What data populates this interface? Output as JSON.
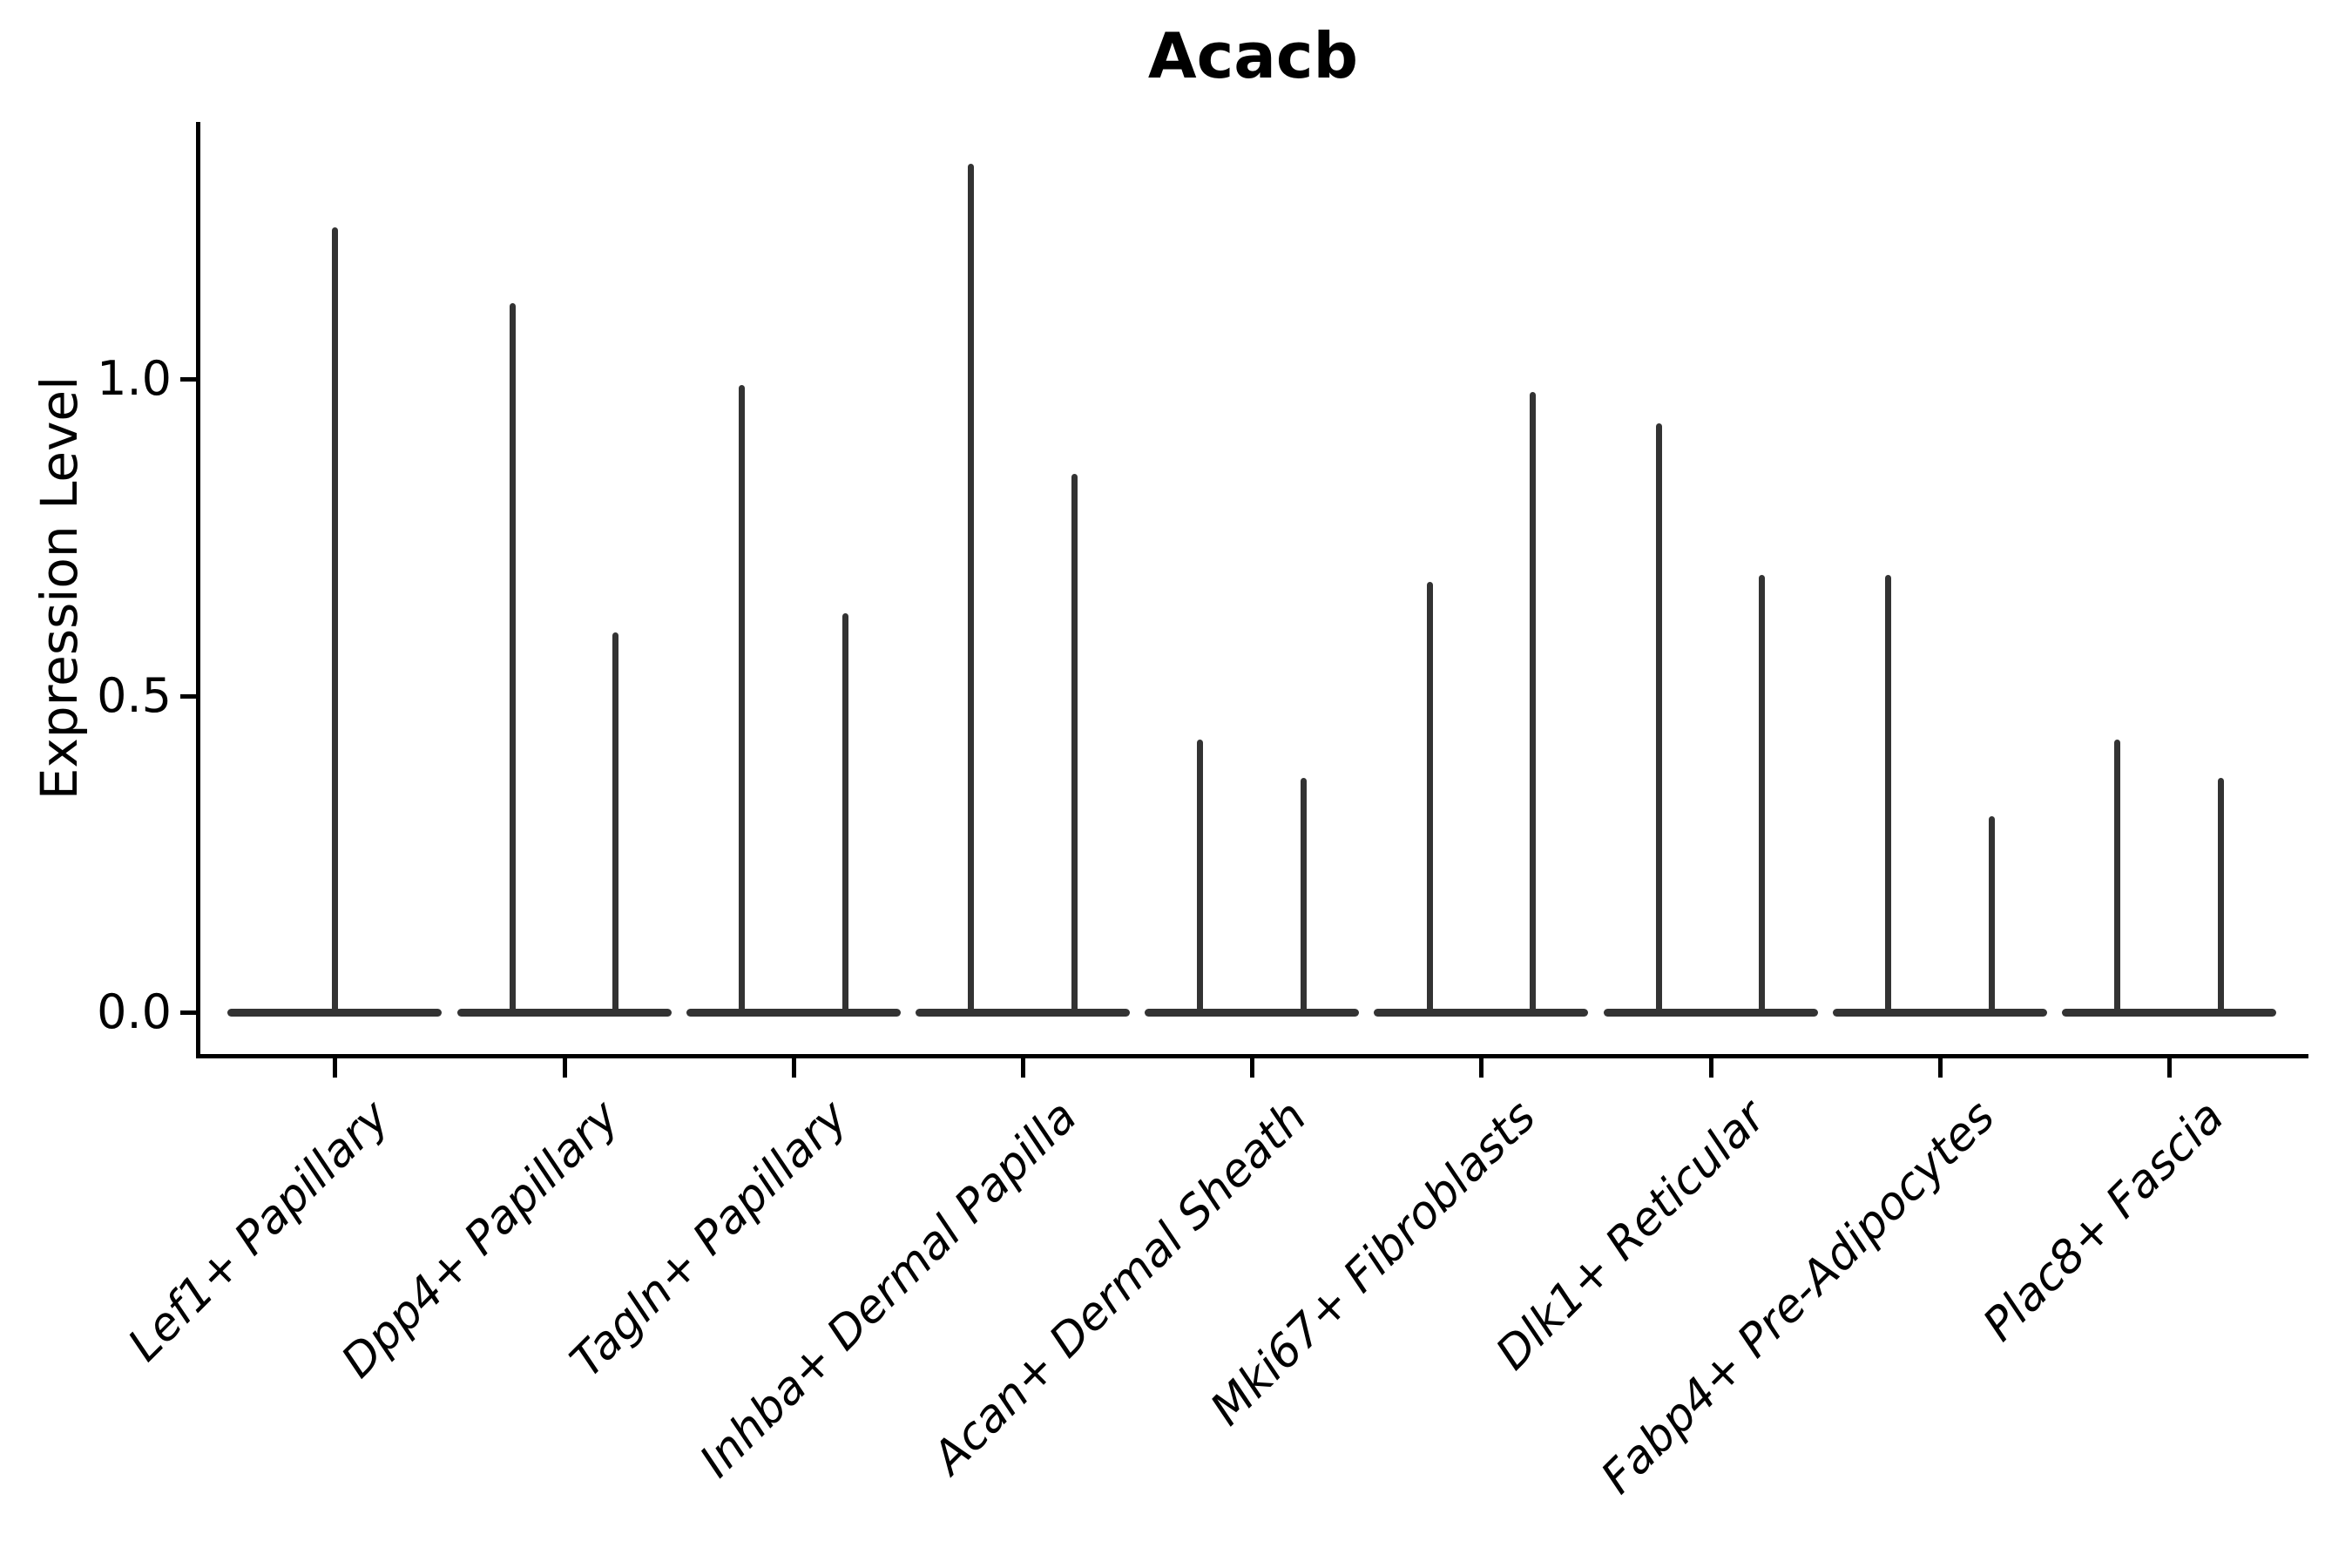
{
  "title": "Acacb",
  "y_axis": {
    "label": "Expression Level",
    "tick_labels": [
      "0.0",
      "0.5",
      "1.0"
    ]
  },
  "x_axis": {
    "tick_labels": [
      "Lef1+ Papillary",
      "Dpp4+ Papillary",
      "Tagln+ Papillary",
      "Inhba+ Dermal Papilla",
      "Acan+ Dermal Sheath",
      "Mki67+ Fibroblasts",
      "Dlk1+ Reticular",
      "Fabp4+ Pre-Adipocytes",
      "Plac8+ Fascia"
    ]
  },
  "colors": {
    "violin": "#333333",
    "axis": "#000000",
    "text": "#000000",
    "background": "#ffffff"
  },
  "chart_data": {
    "type": "violin",
    "title": "Acacb",
    "xlabel": "",
    "ylabel": "Expression Level",
    "yticks": [
      0.0,
      0.5,
      1.0
    ],
    "ylim": [
      -0.07,
      1.41
    ],
    "grid": false,
    "legend": false,
    "description": "Single-cell expression violin plot. Expression is concentrated at 0, so each violin renders as a wide flat base at 0 with a thin central spike rising to its maximum expression value. Category 1 contains one full-width violin; categories 2-9 each contain two side-by-side (dodged) violins.",
    "categories": [
      "Lef1+ Papillary",
      "Dpp4+ Papillary",
      "Tagln+ Papillary",
      "Inhba+ Dermal Papilla",
      "Acan+ Dermal Sheath",
      "Mki67+ Fibroblasts",
      "Dlk1+ Reticular",
      "Fabp4+ Pre-Adipocytes",
      "Plac8+ Fascia"
    ],
    "violins": [
      {
        "category": "Lef1+ Papillary",
        "group_violins": [
          {
            "dodge": 0,
            "min": 0,
            "max": 1.24
          }
        ]
      },
      {
        "category": "Dpp4+ Papillary",
        "group_violins": [
          {
            "dodge": -1,
            "min": 0,
            "max": 1.12
          },
          {
            "dodge": 1,
            "min": 0,
            "max": 0.6
          }
        ]
      },
      {
        "category": "Tagln+ Papillary",
        "group_violins": [
          {
            "dodge": -1,
            "min": 0,
            "max": 0.99
          },
          {
            "dodge": 1,
            "min": 0,
            "max": 0.63
          }
        ]
      },
      {
        "category": "Inhba+ Dermal Papilla",
        "group_violins": [
          {
            "dodge": -1,
            "min": 0,
            "max": 1.34
          },
          {
            "dodge": 1,
            "min": 0,
            "max": 0.85
          }
        ]
      },
      {
        "category": "Acan+ Dermal Sheath",
        "group_violins": [
          {
            "dodge": -1,
            "min": 0,
            "max": 0.43
          },
          {
            "dodge": 1,
            "min": 0,
            "max": 0.37
          }
        ]
      },
      {
        "category": "Mki67+ Fibroblasts",
        "group_violins": [
          {
            "dodge": -1,
            "min": 0,
            "max": 0.68
          },
          {
            "dodge": 1,
            "min": 0,
            "max": 0.98
          }
        ]
      },
      {
        "category": "Dlk1+ Reticular",
        "group_violins": [
          {
            "dodge": -1,
            "min": 0,
            "max": 0.93
          },
          {
            "dodge": 1,
            "min": 0,
            "max": 0.69
          }
        ]
      },
      {
        "category": "Fabp4+ Pre-Adipocytes",
        "group_violins": [
          {
            "dodge": -1,
            "min": 0,
            "max": 0.69
          },
          {
            "dodge": 1,
            "min": 0,
            "max": 0.31
          }
        ]
      },
      {
        "category": "Plac8+ Fascia",
        "group_violins": [
          {
            "dodge": -1,
            "min": 0,
            "max": 0.43
          },
          {
            "dodge": 1,
            "min": 0,
            "max": 0.37
          }
        ]
      }
    ]
  }
}
